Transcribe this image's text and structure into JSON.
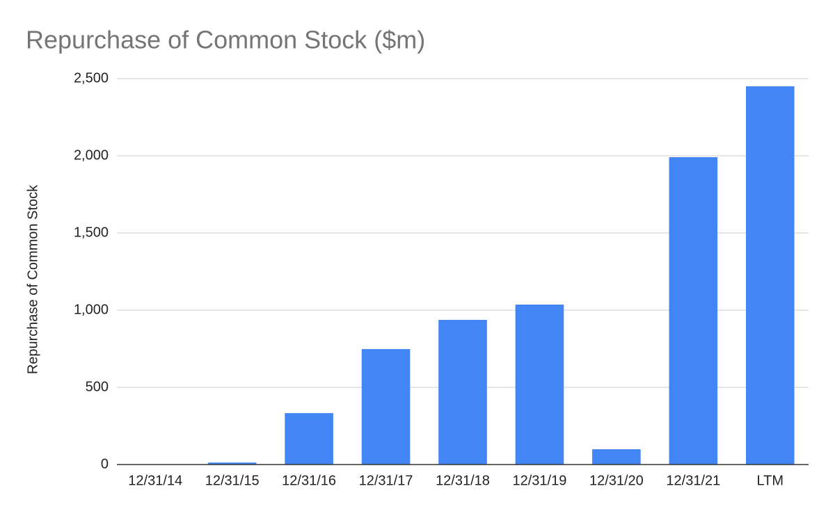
{
  "chart_data": {
    "type": "bar",
    "title": "Repurchase of Common Stock ($m)",
    "y_label": "Repurchase of Common Stock",
    "categories": [
      "12/31/14",
      "12/31/15",
      "12/31/16",
      "12/31/17",
      "12/31/18",
      "12/31/19",
      "12/31/20",
      "12/31/21",
      "LTM"
    ],
    "values": [
      0,
      13,
      333,
      748,
      937,
      1036,
      99,
      1991,
      2450
    ],
    "color": "#4285f4",
    "ylim": [
      0,
      2500
    ],
    "yticks": [
      0,
      500,
      {
        "value": 1000,
        "label": "1,000"
      },
      {
        "value": 1500,
        "label": "1,500"
      },
      {
        "value": 2000,
        "label": "2,000"
      },
      {
        "value": 2500,
        "label": "2,500"
      }
    ],
    "grid": true
  }
}
